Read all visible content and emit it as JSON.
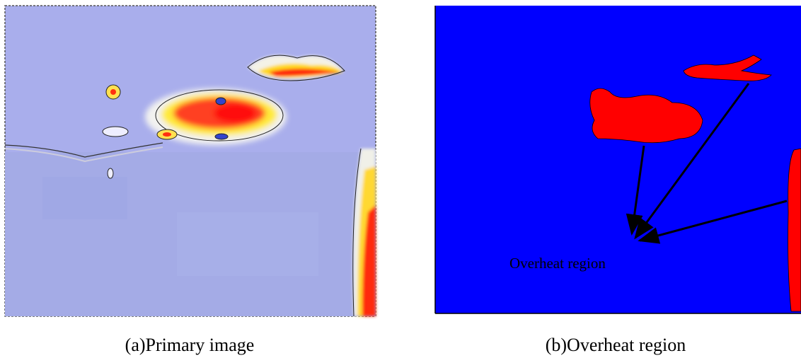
{
  "panels": [
    {
      "caption": "(a)Primary image"
    },
    {
      "caption": "(b)Overheat region",
      "annotation": "Overheat region"
    }
  ]
}
